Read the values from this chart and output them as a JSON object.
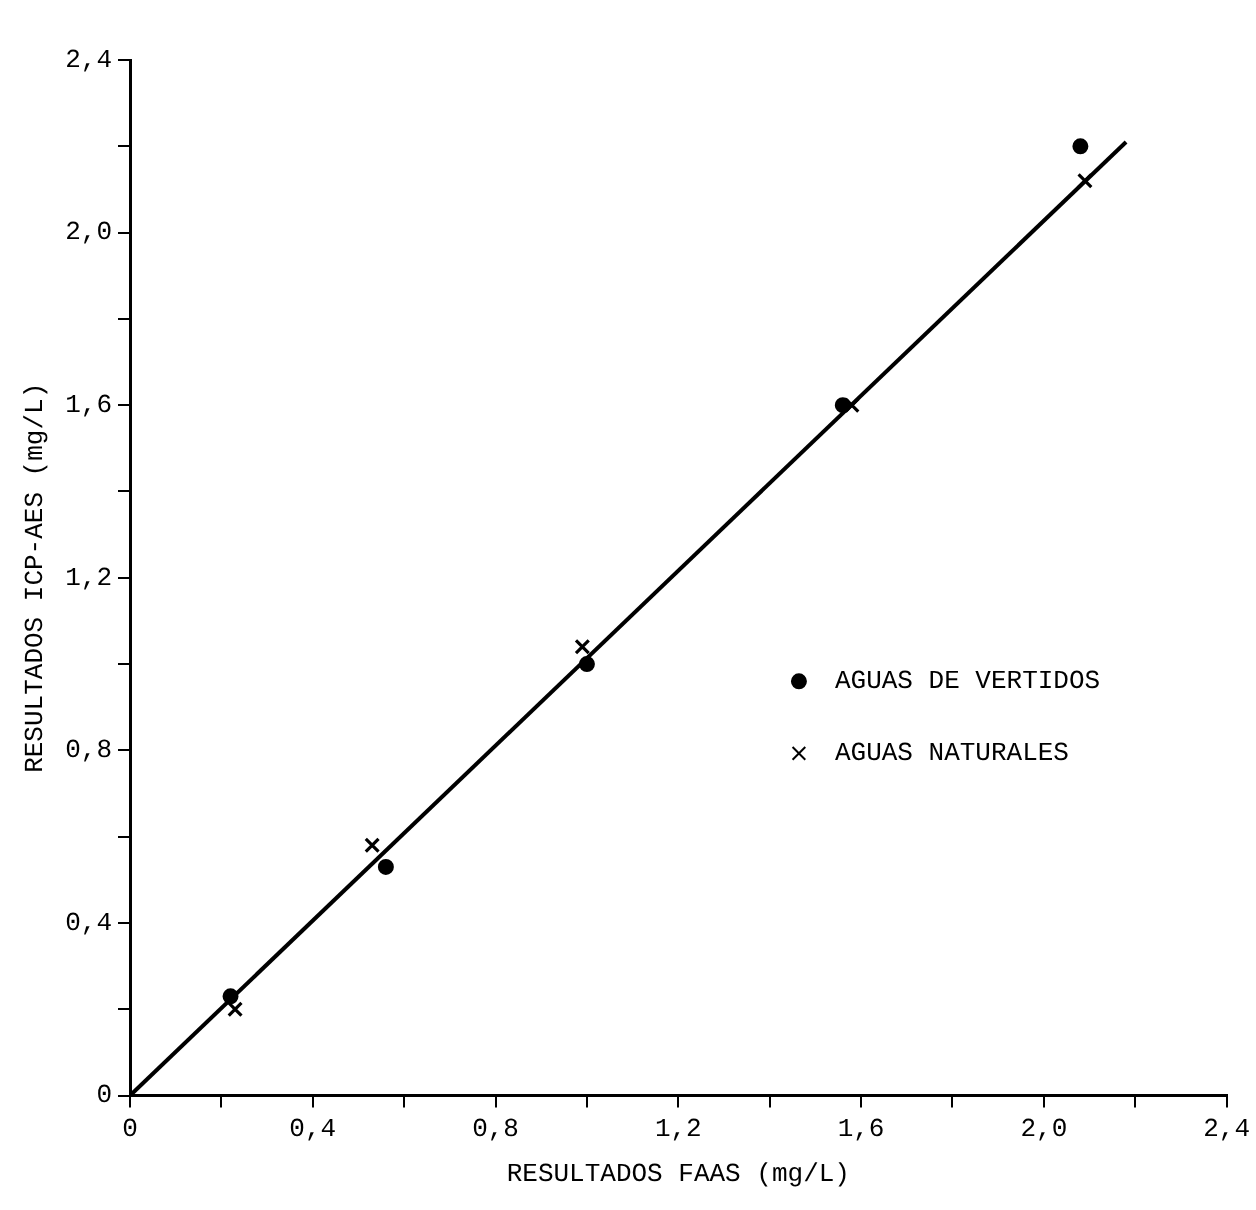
{
  "chart_data": {
    "type": "scatter",
    "xlabel": "RESULTADOS FAAS (mg/L)",
    "ylabel": "RESULTADOS ICP-AES (mg/L)",
    "xlim": [
      0,
      2.4
    ],
    "ylim": [
      0,
      2.4
    ],
    "xticks": [
      0,
      {
        "value": 0.2,
        "label": null
      },
      {
        "value": 0.4,
        "label": "0,4"
      },
      {
        "value": 0.6,
        "label": null
      },
      {
        "value": 0.8,
        "label": "0,8"
      },
      {
        "value": 1.0,
        "label": null
      },
      {
        "value": 1.2,
        "label": "1,2"
      },
      {
        "value": 1.4,
        "label": null
      },
      {
        "value": 1.6,
        "label": "1,6"
      },
      {
        "value": 1.8,
        "label": null
      },
      {
        "value": 2.0,
        "label": "2,0"
      },
      {
        "value": 2.2,
        "label": null
      },
      {
        "value": 2.4,
        "label": "2,4"
      }
    ],
    "yticks": [
      0,
      {
        "value": 0.2,
        "label": null
      },
      {
        "value": 0.4,
        "label": "0,4"
      },
      {
        "value": 0.6,
        "label": null
      },
      {
        "value": 0.8,
        "label": "0,8"
      },
      {
        "value": 1.0,
        "label": null
      },
      {
        "value": 1.2,
        "label": "1,2"
      },
      {
        "value": 1.4,
        "label": null
      },
      {
        "value": 1.6,
        "label": "1,6"
      },
      {
        "value": 1.8,
        "label": null
      },
      {
        "value": 2.0,
        "label": "2,0"
      },
      {
        "value": 2.2,
        "label": null
      },
      {
        "value": 2.4,
        "label": "2,4"
      }
    ],
    "grid": false,
    "legend": "right",
    "series": [
      {
        "name": "AGUAS DE VERTIDOS",
        "color": "#000000",
        "marker": "circle",
        "x": [
          0.22,
          0.56,
          1.0,
          1.56,
          2.08
        ],
        "values": [
          0.23,
          0.53,
          1.0,
          1.6,
          2.2
        ]
      },
      {
        "name": "AGUAS NATURALES",
        "color": "#000000",
        "marker": "cross",
        "x": [
          0.23,
          0.53,
          0.99,
          1.58,
          2.09
        ],
        "values": [
          0.2,
          0.58,
          1.04,
          1.6,
          2.12
        ]
      },
      {
        "type": "line",
        "color": "#000000",
        "marker": "none",
        "x": [
          0,
          2.18
        ],
        "values": [
          0,
          2.21
        ]
      }
    ]
  }
}
